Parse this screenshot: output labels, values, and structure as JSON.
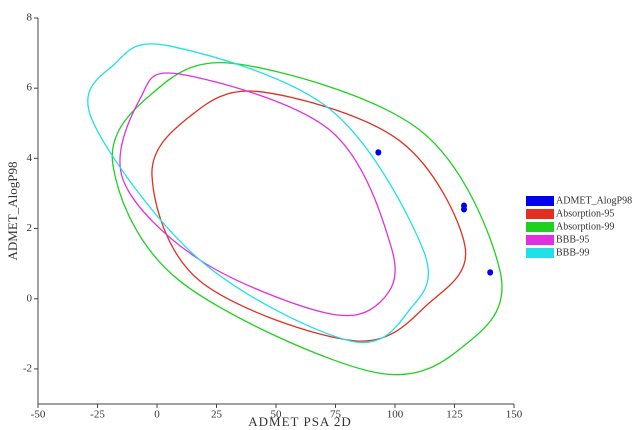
{
  "chart_data": {
    "type": "scatter",
    "x_label": "ADMET PSA 2D",
    "y_label": "ADMET_AlogP98",
    "xlim": [
      -50,
      150
    ],
    "xticks": [
      -50,
      -25,
      0,
      25,
      50,
      75,
      100,
      125,
      150
    ],
    "ylim": [
      -3,
      8
    ],
    "yticks": [
      -2,
      0,
      2,
      4,
      6,
      8
    ],
    "series": [
      {
        "name": "ADMET_AlogP98",
        "color": "#0000ee",
        "type": "scatter",
        "x": [
          93,
          129,
          129,
          140
        ],
        "y": [
          4.17,
          2.65,
          2.55,
          0.75
        ]
      },
      {
        "name": "Absorption-95",
        "color": "#e03020",
        "type": "ellipse",
        "x": [
          -2.1,
          13.9,
          43.3,
          102,
          129.4,
          114.7,
          83.2,
          18.1
        ],
        "y": [
          3.5,
          5.2,
          5.9,
          4.5,
          1.5,
          -0.1,
          -1.2,
          0.5
        ]
      },
      {
        "name": "Absorption-99",
        "color": "#20d020",
        "type": "ellipse",
        "x": [
          -18.5,
          -2.9,
          32.8,
          110.5,
          144.1,
          131.5,
          91.6,
          9.7
        ],
        "y": [
          3.8,
          5.8,
          6.7,
          4.8,
          0.8,
          -1.2,
          -2.1,
          0.5
        ]
      },
      {
        "name": "BBB-95",
        "color": "#e030e0",
        "type": "ellipse",
        "x": [
          -14.3,
          -7.1,
          9.7,
          72.7,
          98.7,
          93.7,
          70.6,
          18.1
        ],
        "y": [
          3.4,
          5.7,
          6.4,
          4.8,
          1.4,
          -0.1,
          -0.4,
          1.1
        ]
      },
      {
        "name": "BBB-99",
        "color": "#20e0e8",
        "type": "ellipse",
        "x": [
          -27.3,
          -17.6,
          5.5,
          72.7,
          111.8,
          106.3,
          81.1,
          18.1
        ],
        "y": [
          5.1,
          6.7,
          7.2,
          5.4,
          1.4,
          -0.3,
          -1.2,
          1.1
        ]
      }
    ]
  }
}
